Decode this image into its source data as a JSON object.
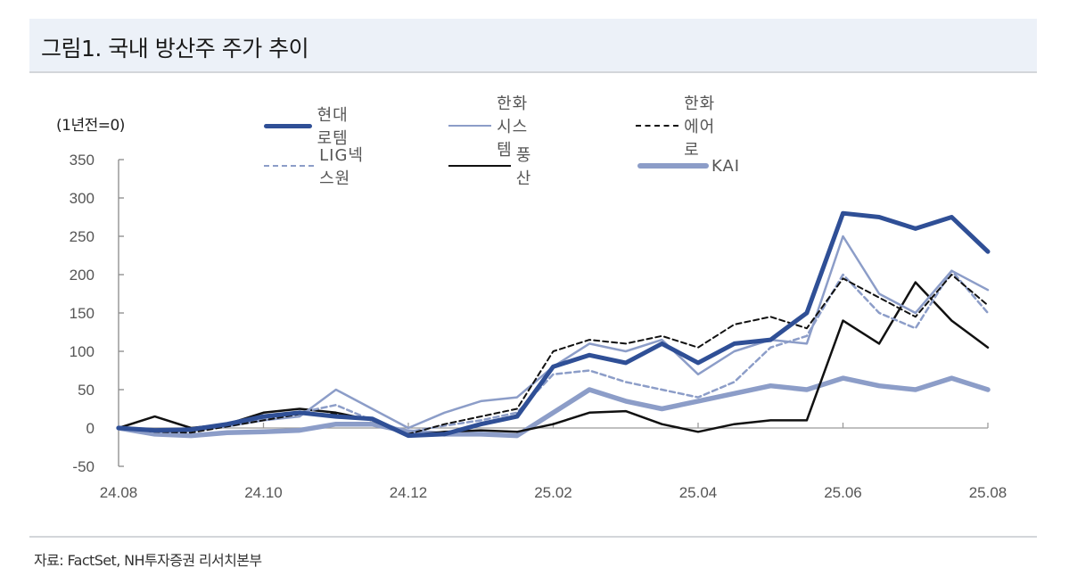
{
  "header": {
    "title": "그림1. 국내 방산주 주가 추이"
  },
  "footer": {
    "source": "자료: FactSet, NH투자증권 리서치본부"
  },
  "chart_data": {
    "type": "line",
    "title": "그림1. 국내 방산주 주가 추이",
    "ylabel": "(1년전=0)",
    "xlabel": "",
    "ylim": [
      -50,
      350
    ],
    "yticks": [
      350,
      300,
      250,
      200,
      150,
      100,
      50,
      0,
      -50
    ],
    "xticks": [
      "24.08",
      "24.10",
      "24.12",
      "25.02",
      "25.04",
      "25.06",
      "25.08"
    ],
    "grid": false,
    "legend_position": "top",
    "x": [
      "24.08a",
      "24.08b",
      "24.09a",
      "24.09b",
      "24.10a",
      "24.10b",
      "24.11a",
      "24.11b",
      "24.12a",
      "24.12b",
      "25.01a",
      "25.01b",
      "25.02a",
      "25.02b",
      "25.03a",
      "25.03b",
      "25.04a",
      "25.04b",
      "25.05a",
      "25.05b",
      "25.06a",
      "25.06b",
      "25.07a",
      "25.07b",
      "25.08a"
    ],
    "series": [
      {
        "name": "현대로템",
        "color": "#2f4f96",
        "width": 5,
        "dash": "",
        "values": [
          0,
          -3,
          -2,
          5,
          15,
          20,
          15,
          12,
          -10,
          -8,
          5,
          15,
          80,
          95,
          85,
          110,
          85,
          110,
          115,
          150,
          280,
          275,
          260,
          275,
          230
        ]
      },
      {
        "name": "한화시스템",
        "color": "#8c9dc8",
        "width": 2.5,
        "dash": "",
        "values": [
          0,
          -5,
          -4,
          2,
          10,
          15,
          50,
          25,
          0,
          20,
          35,
          40,
          80,
          110,
          100,
          115,
          70,
          100,
          115,
          110,
          250,
          175,
          150,
          205,
          180
        ]
      },
      {
        "name": "한화에어로",
        "color": "#111111",
        "width": 2,
        "dash": "6,4",
        "values": [
          0,
          -5,
          -6,
          2,
          10,
          18,
          18,
          12,
          -8,
          5,
          15,
          25,
          100,
          115,
          110,
          120,
          105,
          135,
          145,
          130,
          195,
          170,
          145,
          200,
          160
        ]
      },
      {
        "name": "LIG넥스원",
        "color": "#8c9dc8",
        "width": 2.5,
        "dash": "6,4",
        "values": [
          0,
          -4,
          -3,
          3,
          12,
          20,
          30,
          10,
          -5,
          3,
          10,
          20,
          70,
          75,
          60,
          50,
          40,
          60,
          105,
          120,
          200,
          150,
          130,
          205,
          150
        ]
      },
      {
        "name": "풍산",
        "color": "#111111",
        "width": 2.5,
        "dash": "",
        "values": [
          0,
          15,
          0,
          5,
          20,
          25,
          20,
          10,
          -10,
          -5,
          -3,
          -5,
          5,
          20,
          22,
          5,
          -5,
          5,
          10,
          10,
          140,
          110,
          190,
          140,
          105
        ]
      },
      {
        "name": "KAI",
        "color": "#8c9dc8",
        "width": 5.5,
        "dash": "",
        "values": [
          0,
          -8,
          -10,
          -6,
          -5,
          -3,
          5,
          5,
          -5,
          -8,
          -8,
          -10,
          20,
          50,
          35,
          25,
          35,
          45,
          55,
          50,
          65,
          55,
          50,
          65,
          50
        ]
      }
    ]
  },
  "legend": [
    {
      "label": "현대로템"
    },
    {
      "label": "한화시스템"
    },
    {
      "label": "한화에어로"
    },
    {
      "label": "LIG넥스원"
    },
    {
      "label": "풍산"
    },
    {
      "label": "KAI"
    }
  ]
}
